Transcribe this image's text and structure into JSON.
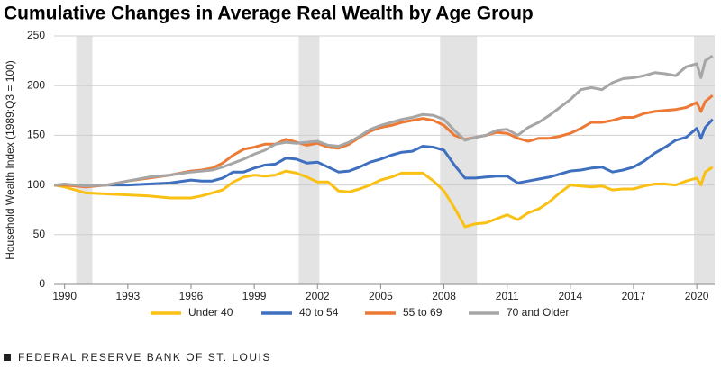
{
  "chart_data": {
    "type": "line",
    "title": "Cumulative Changes in Average Real Wealth by Age Group",
    "y_label": "Household Wealth Index (1989:Q3 = 100)",
    "source": "FEDERAL RESERVE BANK OF ST. LOUIS",
    "x": [
      1989.5,
      1990,
      1990.5,
      1991,
      1992,
      1993,
      1994,
      1995,
      1996,
      1996.5,
      1997,
      1997.5,
      1998,
      1998.5,
      1999,
      1999.5,
      2000,
      2000.5,
      2001,
      2001.5,
      2002,
      2002.5,
      2003,
      2003.5,
      2004,
      2004.5,
      2005,
      2005.5,
      2006,
      2006.5,
      2007,
      2007.5,
      2008,
      2008.5,
      2009,
      2009.5,
      2010,
      2010.5,
      2011,
      2011.5,
      2012,
      2012.5,
      2013,
      2013.5,
      2014,
      2014.5,
      2015,
      2015.5,
      2016,
      2016.5,
      2017,
      2017.5,
      2018,
      2018.5,
      2019,
      2019.5,
      2020,
      2020.2,
      2020.4,
      2020.75
    ],
    "series": [
      {
        "name": "Under 40",
        "color": "#fbc014",
        "values": [
          100,
          98,
          95,
          92,
          91,
          90,
          89,
          87,
          87,
          89,
          92,
          95,
          103,
          108,
          110,
          109,
          110,
          114,
          112,
          108,
          103,
          103,
          94,
          93,
          96,
          100,
          105,
          108,
          112,
          112,
          112,
          104,
          94,
          77,
          58,
          61,
          62,
          66,
          70,
          65,
          72,
          76,
          83,
          92,
          100,
          99,
          98,
          99,
          95,
          96,
          96,
          99,
          101,
          101,
          100,
          104,
          107,
          100,
          113,
          118
        ]
      },
      {
        "name": "40 to 54",
        "color": "#3f6fbf",
        "values": [
          100,
          100,
          100,
          99,
          100,
          100,
          101,
          102,
          105,
          104,
          104,
          107,
          113,
          113,
          117,
          120,
          121,
          127,
          126,
          122,
          123,
          118,
          113,
          114,
          118,
          123,
          126,
          130,
          133,
          134,
          139,
          138,
          135,
          120,
          107,
          107,
          108,
          109,
          109,
          102,
          104,
          106,
          108,
          111,
          114,
          115,
          117,
          118,
          113,
          115,
          118,
          124,
          132,
          138,
          145,
          148,
          157,
          147,
          158,
          166
        ]
      },
      {
        "name": "55 to 69",
        "color": "#ec7a35",
        "values": [
          100,
          100,
          99,
          98,
          100,
          104,
          107,
          110,
          114,
          115,
          117,
          122,
          130,
          136,
          138,
          141,
          141,
          146,
          143,
          140,
          142,
          138,
          137,
          141,
          148,
          154,
          158,
          160,
          163,
          165,
          167,
          165,
          160,
          150,
          146,
          148,
          150,
          153,
          152,
          147,
          144,
          147,
          147,
          149,
          152,
          157,
          163,
          163,
          165,
          168,
          168,
          172,
          174,
          175,
          176,
          178,
          183,
          174,
          184,
          190
        ]
      },
      {
        "name": "70 and Older",
        "color": "#a6a6a6",
        "values": [
          100,
          101,
          100,
          99,
          100,
          104,
          108,
          110,
          113,
          114,
          115,
          118,
          122,
          126,
          131,
          135,
          141,
          143,
          142,
          143,
          144,
          140,
          139,
          143,
          149,
          156,
          160,
          163,
          166,
          168,
          171,
          170,
          166,
          155,
          145,
          148,
          150,
          155,
          156,
          150,
          158,
          163,
          170,
          178,
          186,
          196,
          198,
          196,
          203,
          207,
          208,
          210,
          213,
          212,
          210,
          219,
          222,
          208,
          225,
          230
        ]
      }
    ],
    "recessions": [
      [
        1990.55,
        1991.32
      ],
      [
        2001.11,
        2002.09
      ],
      [
        2007.82,
        2009.57
      ],
      [
        2019.87,
        2020.85
      ]
    ],
    "xlim": [
      1989.5,
      2020.85
    ],
    "ylim": [
      0,
      250
    ],
    "xticks": [
      1990,
      1993,
      1996,
      1999,
      2002,
      2005,
      2008,
      2011,
      2014,
      2017,
      2020
    ],
    "yticks": [
      0,
      50,
      100,
      150,
      200,
      250
    ],
    "grid": true,
    "legend": "bottom"
  }
}
